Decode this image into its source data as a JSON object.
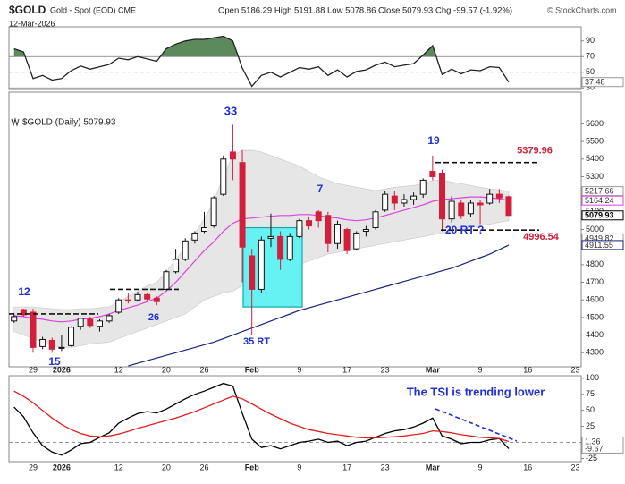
{
  "chart_data": [
    {
      "type": "candlestick",
      "title": "$GOLD",
      "subtitle": "Gold - Spot (EOD) CME",
      "date": "12-Mar-2026",
      "quote": "Open 5186.29 High 5191.88 Low 5078.86 Close 5079.93 Chg -99.57 (-1.92%)",
      "source": "© StockCharts.com",
      "label": "$GOLD (Daily) 5079.93",
      "categories": [
        null,
        null,
        "29",
        null,
        null,
        "2026",
        null,
        null,
        null,
        null,
        null,
        "12",
        null,
        null,
        null,
        null,
        "20",
        null,
        null,
        null,
        "26",
        null,
        null,
        null,
        null,
        "Feb",
        null,
        null,
        null,
        null,
        "9",
        null,
        null,
        null,
        null,
        "17",
        null,
        null,
        null,
        "23",
        null,
        null,
        null,
        null,
        "Mar",
        null,
        null,
        null,
        null,
        "9",
        null,
        null,
        null,
        null,
        "16",
        null,
        null,
        null,
        null,
        "23"
      ],
      "open": [
        4480,
        4545,
        4530,
        4335,
        4370,
        4330,
        4340,
        4450,
        4490,
        4450,
        4480,
        4530,
        4600,
        4600,
        4630,
        4610,
        4660,
        4760,
        4830,
        4940,
        4990,
        5020,
        5200,
        5440,
        5380,
        4850,
        4660,
        4950,
        4960,
        4830,
        4960,
        5050,
        5100,
        5080,
        4920,
        5000,
        4890,
        4990,
        5010,
        5110,
        5190,
        5150,
        5170,
        5200,
        5330,
        5320,
        5060,
        5150,
        5090,
        5150,
        5150,
        5200,
        5186.29,
        null,
        null,
        null,
        null,
        null,
        null,
        null
      ],
      "high": [
        4525,
        4550,
        4550,
        4390,
        4385,
        4400,
        4450,
        4500,
        4505,
        4490,
        4520,
        4610,
        4640,
        4645,
        4640,
        4620,
        4770,
        4890,
        4950,
        4990,
        5100,
        5190,
        5420,
        5595,
        5450,
        4890,
        4960,
        5090,
        4990,
        4980,
        5060,
        5070,
        5110,
        5100,
        5050,
        5010,
        4990,
        5020,
        5110,
        5220,
        5220,
        5200,
        5210,
        5290,
        5420,
        5340,
        5190,
        5170,
        5170,
        5170,
        5230,
        5230,
        5191.88,
        null,
        null,
        null,
        null,
        null,
        null,
        null
      ],
      "low": [
        4470,
        4505,
        4300,
        4320,
        4300,
        4310,
        4335,
        4430,
        4440,
        4420,
        4470,
        4520,
        4580,
        4590,
        4590,
        4570,
        4655,
        4750,
        4820,
        4920,
        4980,
        5010,
        5190,
        5280,
        4700,
        4400,
        4640,
        4900,
        4770,
        4820,
        4950,
        5000,
        5010,
        4870,
        4890,
        4860,
        4880,
        4960,
        5000,
        5100,
        5110,
        5130,
        5140,
        5180,
        5280,
        4990,
        5040,
        5060,
        5070,
        5030,
        5140,
        5150,
        5078.86,
        null,
        null,
        null,
        null,
        null,
        null,
        null
      ],
      "close": [
        4505,
        4515,
        4330,
        4375,
        4320,
        4330,
        4445,
        4495,
        4455,
        4480,
        4510,
        4600,
        4595,
        4630,
        4605,
        4590,
        4760,
        4830,
        4935,
        4980,
        5010,
        5180,
        5400,
        5400,
        4900,
        4660,
        4940,
        4960,
        4830,
        4960,
        5050,
        5020,
        5050,
        4920,
        5030,
        4880,
        4980,
        5000,
        5100,
        5200,
        5150,
        5170,
        5190,
        5280,
        5300,
        5060,
        5160,
        5080,
        5150,
        5140,
        5200,
        5179.5,
        5079.93,
        null,
        null,
        null,
        null,
        null,
        null,
        null
      ],
      "ma20": [
        4510,
        4505,
        4495,
        4490,
        4480,
        4475,
        4480,
        4490,
        4495,
        4505,
        4520,
        4540,
        4555,
        4570,
        4590,
        4610,
        4650,
        4700,
        4760,
        4820,
        4880,
        4930,
        4990,
        5035,
        5060,
        5065,
        5070,
        5075,
        5080,
        5080,
        5085,
        5085,
        5080,
        5070,
        5065,
        5055,
        5050,
        5055,
        5065,
        5080,
        5095,
        5110,
        5125,
        5140,
        5160,
        5170,
        5175,
        5180,
        5185,
        5185,
        5180,
        5175,
        5164.24,
        null,
        null,
        null,
        null,
        null,
        null,
        null
      ],
      "ma50": [
        null,
        null,
        null,
        null,
        null,
        null,
        null,
        null,
        null,
        null,
        null,
        null,
        4225,
        4240,
        4255,
        4270,
        4285,
        4300,
        4315,
        4330,
        4345,
        4360,
        4380,
        4400,
        4420,
        4440,
        4460,
        4480,
        4500,
        4520,
        4540,
        4555,
        4570,
        4585,
        4600,
        4615,
        4630,
        4645,
        4660,
        4675,
        4690,
        4705,
        4720,
        4735,
        4750,
        4765,
        4780,
        4800,
        4820,
        4840,
        4860,
        4885,
        4911.55,
        null,
        null,
        null,
        null,
        null,
        null,
        null
      ],
      "band_upper": [
        4560,
        4560,
        4560,
        4555,
        4550,
        4545,
        4545,
        4550,
        4550,
        4555,
        4560,
        4590,
        4620,
        4650,
        4680,
        4700,
        4760,
        4830,
        4900,
        4980,
        5060,
        5160,
        5300,
        5420,
        5450,
        5450,
        5440,
        5420,
        5400,
        5380,
        5360,
        5330,
        5300,
        5280,
        5260,
        5250,
        5240,
        5230,
        5220,
        5230,
        5240,
        5245,
        5250,
        5260,
        5280,
        5280,
        5270,
        5260,
        5250,
        5240,
        5230,
        5225,
        5217.66,
        null,
        null,
        null,
        null,
        null,
        null,
        null
      ],
      "band_lower": [
        4420,
        4400,
        4380,
        4360,
        4340,
        4330,
        4330,
        4340,
        4350,
        4355,
        4360,
        4380,
        4400,
        4420,
        4440,
        4460,
        4480,
        4500,
        4520,
        4560,
        4600,
        4620,
        4640,
        4650,
        4680,
        4700,
        4720,
        4740,
        4760,
        4780,
        4800,
        4820,
        4840,
        4860,
        4870,
        4880,
        4890,
        4900,
        4910,
        4920,
        4930,
        4940,
        4950,
        4960,
        4970,
        4980,
        4990,
        5000,
        5010,
        5020,
        5030,
        5040,
        5050,
        null,
        null,
        null,
        null,
        null,
        null,
        null
      ],
      "other_last_value": 4949.82,
      "up_color": "#ffffff",
      "down_color": "#d21f3c",
      "ma20_color": "#e040e0",
      "ma50_color": "#1a237e",
      "band_color": "#e6e6e6",
      "levels": [
        4520,
        4660,
        5379.96,
        4996.54
      ],
      "box": [
        4560,
        5010
      ],
      "box_color": "#66f2f2",
      "annotations": [
        "12",
        "15",
        "26",
        "33",
        "35 RT",
        "7",
        "19",
        "20 RT ?"
      ],
      "annotation_color": "#1f2fd6",
      "level_label_color": "#d21f3c",
      "ylim": [
        4220,
        5780
      ],
      "yticks": [
        4300,
        4400,
        4500,
        4600,
        4700,
        4800,
        4900,
        5000,
        5100,
        5200,
        5300,
        5400,
        5500,
        5600
      ]
    },
    {
      "type": "line",
      "values": [
        80,
        76,
        42,
        46,
        40,
        42,
        52,
        58,
        54,
        57,
        60,
        68,
        66,
        70,
        67,
        64,
        80,
        86,
        90,
        92,
        92,
        94,
        96,
        90,
        55,
        32,
        46,
        50,
        44,
        50,
        56,
        54,
        57,
        46,
        53,
        44,
        51,
        53,
        59,
        63,
        57,
        59,
        61,
        72,
        84,
        47,
        54,
        48,
        53,
        52,
        57,
        56,
        37.48,
        null,
        null,
        null,
        null,
        null,
        null,
        null
      ],
      "color": "#222222",
      "fill_above": 70,
      "fill_color": "#5c8a5c",
      "ref_lines": [
        30,
        70
      ],
      "mid_line": 50,
      "ylim": [
        28,
        108
      ],
      "yticks": [
        30,
        50,
        70,
        90
      ]
    },
    {
      "type": "line",
      "categories": [
        null,
        null,
        "29",
        null,
        null,
        "2026",
        null,
        null,
        null,
        null,
        null,
        "12",
        null,
        null,
        null,
        null,
        "20",
        null,
        null,
        null,
        "26",
        null,
        null,
        null,
        null,
        "Feb",
        null,
        null,
        null,
        null,
        "9",
        null,
        null,
        null,
        null,
        "17",
        null,
        null,
        null,
        "23",
        null,
        null,
        null,
        null,
        "Mar",
        null,
        null,
        null,
        null,
        "9",
        null,
        null,
        null,
        null,
        "16",
        null,
        null,
        null,
        null,
        "23"
      ],
      "series": [
        {
          "color": "#000000",
          "values": [
            55,
            40,
            15,
            -5,
            -15,
            -20,
            -12,
            -2,
            0,
            8,
            15,
            30,
            38,
            45,
            48,
            46,
            52,
            60,
            68,
            75,
            80,
            86,
            92,
            88,
            45,
            5,
            -8,
            -5,
            -10,
            -5,
            0,
            2,
            5,
            0,
            2,
            -5,
            0,
            2,
            8,
            14,
            18,
            20,
            24,
            30,
            38,
            10,
            5,
            -2,
            0,
            0,
            4,
            6,
            -9.67,
            null,
            null,
            null,
            null,
            null,
            null,
            null
          ]
        },
        {
          "color": "#e02020",
          "values": [
            80,
            72,
            62,
            50,
            38,
            28,
            20,
            14,
            10,
            9,
            10,
            13,
            17,
            22,
            26,
            30,
            34,
            38,
            43,
            48,
            54,
            60,
            66,
            72,
            68,
            60,
            52,
            44,
            37,
            30,
            25,
            20,
            17,
            14,
            12,
            10,
            8,
            7,
            7,
            8,
            9,
            10,
            12,
            14,
            18,
            17,
            15,
            12,
            10,
            8,
            7,
            6,
            1.36,
            null,
            null,
            null,
            null,
            null,
            null,
            null
          ]
        }
      ],
      "annotation": "The TSI is trending lower",
      "annotation_color": "#1f2fd6",
      "mid_line": 0,
      "ylim": [
        -30,
        104
      ],
      "yticks": [
        -25,
        0,
        25,
        50,
        75,
        100
      ]
    }
  ]
}
